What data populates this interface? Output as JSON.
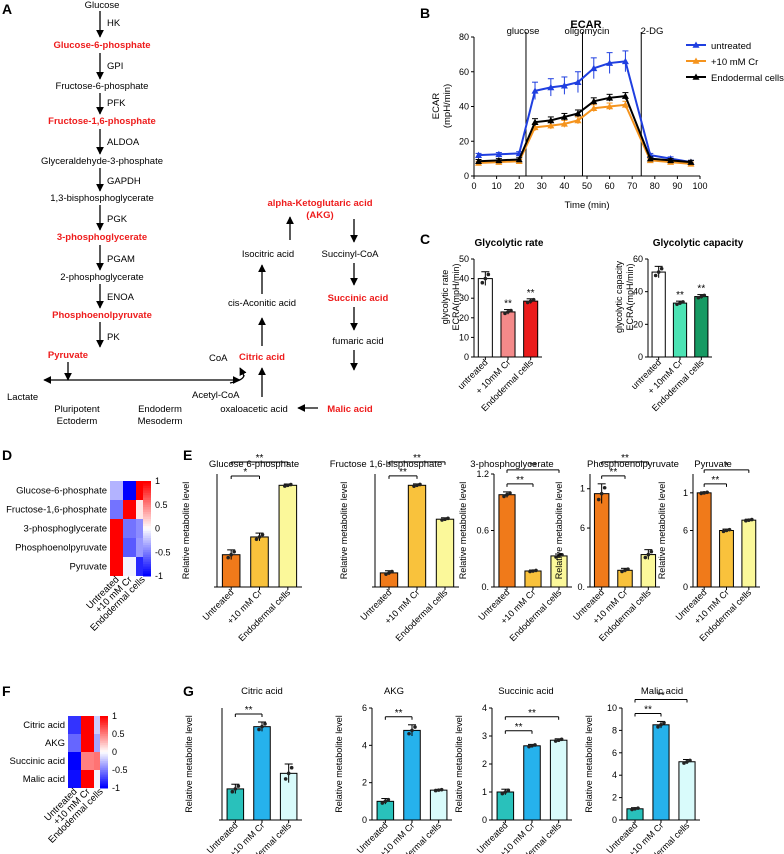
{
  "panel_letters": {
    "a": "A",
    "b": "B",
    "c": "C",
    "d": "D",
    "e": "E",
    "f": "F",
    "g": "G"
  },
  "pathway": {
    "glycolysis": [
      {
        "label": "Glucose",
        "red": false
      },
      {
        "label": "Glucose-6-phosphate",
        "red": true
      },
      {
        "label": "Fructose-6-phosphate",
        "red": false
      },
      {
        "label": "Fructose-1,6-phosphate",
        "red": true
      },
      {
        "label": "Glyceraldehyde-3-phosphate",
        "red": false
      },
      {
        "label": "1,3-bisphosphoglycerate",
        "red": false
      },
      {
        "label": "3-phosphoglycerate",
        "red": true
      },
      {
        "label": "2-phosphoglycerate",
        "red": false
      },
      {
        "label": "Phosphoenolpyruvate",
        "red": true
      },
      {
        "label": "Pyruvate",
        "red": true
      }
    ],
    "enzymes": [
      "HK",
      "GPI",
      "PFK",
      "ALDOA",
      "GAPDH",
      "PGK",
      "PGAM",
      "ENOA",
      "PK"
    ],
    "lactate": "Lactate",
    "pluripotent": "Pluripotent",
    "ectoderm": "Ectoderm",
    "endoderm": "Endoderm",
    "mesoderm": "Mesoderm",
    "acetyl_coa": "Acetyl-CoA",
    "coa": "CoA",
    "tca": {
      "akg_1": "alpha-Ketoglutaric acid",
      "akg_2": "(AKG)",
      "succinyl_coa": "Succinyl-CoA",
      "succinic": "Succinic acid",
      "fumaric": "fumaric acid",
      "malic": "Malic acid",
      "oxaloacetic": "oxaloacetic acid",
      "citric": "Citric acid",
      "cis_aconitic": "cis-Aconitic acid",
      "isocitric": "Isocitric acid"
    }
  },
  "chart_data": [
    {
      "id": "B",
      "type": "line",
      "title": "ECAR",
      "xlabel": "Time (min)",
      "ylabel": [
        "ECAR",
        "(mpH/min)"
      ],
      "xlim": [
        0,
        100
      ],
      "ylim": [
        0,
        80
      ],
      "xticks": [
        "0",
        "10",
        "20",
        "30",
        "40",
        "50",
        "60",
        "70",
        "80",
        "90",
        "100"
      ],
      "yticks": [
        "0",
        "20",
        "40",
        "60",
        "80"
      ],
      "injections": [
        {
          "t": 23,
          "label": "glucose"
        },
        {
          "t": 48,
          "label": "oligomycin"
        },
        {
          "t": 74,
          "label": "2-DG"
        }
      ],
      "x": [
        2,
        11,
        20,
        27,
        34,
        40,
        46,
        53,
        60,
        67,
        78,
        87,
        96
      ],
      "series": [
        {
          "name": "untreated",
          "color": "#1f3fe0",
          "marker": "triangle",
          "values": [
            12,
            12.5,
            13,
            49,
            51,
            52,
            54,
            62,
            65,
            66,
            12,
            10,
            8
          ],
          "errors": [
            1,
            1,
            1,
            5,
            5,
            5,
            6,
            6,
            6,
            6,
            1,
            1,
            1
          ]
        },
        {
          "name": "+10 mM Cr",
          "color": "#f5941e",
          "marker": "triangle",
          "values": [
            7.5,
            8,
            8.5,
            28,
            29,
            30,
            32,
            39,
            40,
            41,
            9,
            8,
            7
          ],
          "errors": [
            1,
            1,
            1,
            2,
            2,
            2,
            2,
            2,
            2,
            2,
            1,
            1,
            1
          ]
        },
        {
          "name": "Endodermal cells",
          "color": "#000000",
          "marker": "triangle",
          "values": [
            8.5,
            9,
            9.5,
            31,
            32,
            34,
            36,
            43,
            45,
            46,
            10,
            9,
            8
          ],
          "errors": [
            1,
            1,
            1,
            2,
            2,
            2,
            2,
            2,
            2,
            2,
            1,
            1,
            1
          ]
        }
      ]
    },
    {
      "id": "C1",
      "type": "bar",
      "title": "Glycolytic rate",
      "ylabel": [
        "glycolytic rate",
        "ECRA(mpH/min)"
      ],
      "ylim": [
        0,
        50
      ],
      "yticks": [
        "0",
        "10",
        "20",
        "30",
        "40",
        "50"
      ],
      "categories": [
        "untreated",
        "+ 10mM Cr",
        "Endodermal cells"
      ],
      "values": [
        40,
        23,
        28.5
      ],
      "errors": [
        3.5,
        1.2,
        1.2
      ],
      "colors": [
        "#ffffff",
        "#f48a8a",
        "#ea1c1c"
      ],
      "sig": [
        "",
        "**",
        "**"
      ]
    },
    {
      "id": "C2",
      "type": "bar",
      "title": "Glycolytic capacity",
      "ylabel": [
        "glycolytic capacity",
        "ECRA(mpH/min)"
      ],
      "ylim": [
        0,
        60
      ],
      "yticks": [
        "0",
        "20",
        "40",
        "60"
      ],
      "categories": [
        "untreated",
        "+ 10mM Cr",
        "Endodermal cells"
      ],
      "values": [
        52,
        33,
        37
      ],
      "errors": [
        3.5,
        1.2,
        1.2
      ],
      "colors": [
        "#ffffff",
        "#4ce3b4",
        "#169a63"
      ],
      "sig": [
        "",
        "**",
        "**"
      ]
    },
    {
      "id": "D",
      "type": "heatmap",
      "rows": [
        "Glucose-6-phosphate",
        "Fructose-1,6-phosphate",
        "3-phosphoglycerate",
        "Phosphoenolpyruvate",
        "Pyruvate"
      ],
      "cols": [
        "Untreated",
        "+10 mM Cr",
        "Endodermal cells"
      ],
      "values": [
        [
          -0.3,
          -1,
          1
        ],
        [
          -0.55,
          1,
          0.1
        ],
        [
          1,
          -0.55,
          -0.45
        ],
        [
          1,
          -0.65,
          -0.4
        ],
        [
          1,
          -0.05,
          -0.85
        ]
      ],
      "scale_ticks": [
        "1",
        "0.5",
        "0",
        "-0.5",
        "-1"
      ]
    },
    {
      "id": "F",
      "type": "heatmap",
      "rows": [
        "Citric acid",
        "AKG",
        "Succinic acid",
        "Malic acid"
      ],
      "cols": [
        "Untreated",
        "+10 mM Cr",
        "Endodermal cells"
      ],
      "values": [
        [
          -0.8,
          1,
          -0.2
        ],
        [
          -0.6,
          1,
          -0.35
        ],
        [
          -1,
          0.5,
          0.55
        ],
        [
          -0.95,
          1,
          -0.05
        ]
      ],
      "scale_ticks": [
        "1",
        "0.5",
        "0",
        "-0.5",
        "-1"
      ]
    },
    {
      "id": "E1",
      "type": "bar",
      "title": "Glucose 6-phosphate",
      "ylabel": "Relative metabolite level",
      "ylim": [
        0,
        3.5
      ],
      "ticks": [
        {
          "v": 0,
          "t": ""
        }
      ],
      "categories": [
        "Untreated",
        "+10 mM Cr",
        "Endodermal cells"
      ],
      "values": [
        1,
        1.55,
        3.15
      ],
      "errors": [
        0.15,
        0.12,
        0.04
      ],
      "colors": [
        "#f07a1a",
        "#f9c23c",
        "#fbf89a"
      ],
      "brackets": [
        {
          "from": 0,
          "to": 1,
          "label": "*"
        },
        {
          "from": 0,
          "to": 2,
          "label": "**"
        }
      ]
    },
    {
      "id": "E2",
      "type": "bar",
      "title": "Fructose 1,6-bisphosphate",
      "ylabel": "Relative metabolite level",
      "ylim": [
        0,
        8
      ],
      "ticks": [
        {
          "v": 0,
          "t": ""
        }
      ],
      "categories": [
        "Untreated",
        "+10 mM Cr",
        "Endodermal cells"
      ],
      "values": [
        1,
        7.2,
        4.8
      ],
      "errors": [
        0.15,
        0.1,
        0.1
      ],
      "colors": [
        "#f07a1a",
        "#f9c23c",
        "#fbf89a"
      ],
      "brackets": [
        {
          "from": 0,
          "to": 1,
          "label": "**"
        },
        {
          "from": 0,
          "to": 2,
          "label": "**"
        }
      ]
    },
    {
      "id": "E3",
      "type": "bar",
      "title": "3-phosphoglycerate",
      "ylabel": "Relative metabolite level",
      "ylim": [
        0,
        1.2
      ],
      "ticks": [
        {
          "v": 0,
          "t": "0."
        },
        {
          "v": 0.6,
          "t": "0.6"
        },
        {
          "v": 1.2,
          "t": "1.2"
        }
      ],
      "categories": [
        "Untreated",
        "+10 mM Cr",
        "Endodermal cells"
      ],
      "values": [
        0.98,
        0.17,
        0.33
      ],
      "errors": [
        0.03,
        0.01,
        0.02
      ],
      "colors": [
        "#f07a1a",
        "#f9c23c",
        "#fbf89a"
      ],
      "brackets": [
        {
          "from": 0,
          "to": 1,
          "label": "**"
        },
        {
          "from": 0,
          "to": 2,
          "label": "**"
        }
      ]
    },
    {
      "id": "E4",
      "type": "bar",
      "title": "Phosphoenolpyruvate",
      "ylabel": "Relative metabolite level",
      "ylim": [
        0,
        1.15
      ],
      "ticks": [
        {
          "v": 0,
          "t": "0."
        },
        {
          "v": 0.6,
          "t": "6"
        },
        {
          "v": 1.0,
          "t": "1"
        }
      ],
      "categories": [
        "Untreated",
        "+10 mM Cr",
        "Endodermal cells"
      ],
      "values": [
        0.95,
        0.17,
        0.33
      ],
      "errors": [
        0.1,
        0.02,
        0.05
      ],
      "colors": [
        "#f07a1a",
        "#f9c23c",
        "#fbf89a"
      ],
      "brackets": [
        {
          "from": 0,
          "to": 1,
          "label": "**"
        },
        {
          "from": 0,
          "to": 2,
          "label": "**"
        }
      ]
    },
    {
      "id": "E5",
      "type": "bar",
      "title": "Pyruvate",
      "ylabel": "Relative metabolite level",
      "ylim": [
        0,
        1.2
      ],
      "ticks": [
        {
          "v": 0,
          "t": "0"
        },
        {
          "v": 0.6,
          "t": "6"
        },
        {
          "v": 1.0,
          "t": "1"
        }
      ],
      "categories": [
        "Untreated",
        "+10 mM Cr",
        "Endodermal cells"
      ],
      "values": [
        1.0,
        0.6,
        0.71
      ],
      "errors": [
        0.01,
        0.015,
        0.01
      ],
      "colors": [
        "#f07a1a",
        "#f9c23c",
        "#fbf89a"
      ],
      "brackets": [
        {
          "from": 0,
          "to": 1,
          "label": "**"
        },
        {
          "from": 0,
          "to": 2,
          "label": "*"
        }
      ]
    },
    {
      "id": "G1",
      "type": "bar",
      "title": "Citric acid",
      "ylabel": "Relative metabolite level",
      "ylim": [
        0,
        3.6
      ],
      "ticks": [
        {
          "v": 0,
          "t": ""
        }
      ],
      "categories": [
        "Untreated",
        "+10 mM Cr",
        "Endodermal cells"
      ],
      "values": [
        1.0,
        3.0,
        1.5
      ],
      "errors": [
        0.15,
        0.15,
        0.3
      ],
      "colors": [
        "#29c1bb",
        "#26b2ec",
        "#d9fbfb"
      ],
      "brackets": [
        {
          "from": 0,
          "to": 1,
          "label": "**"
        }
      ]
    },
    {
      "id": "G2",
      "type": "bar",
      "title": "AKG",
      "ylabel": "Relative metabolite level",
      "ylim": [
        0,
        6
      ],
      "ticks": [
        {
          "v": 0,
          "t": "0"
        },
        {
          "v": 2,
          "t": "2"
        },
        {
          "v": 4,
          "t": "4"
        },
        {
          "v": 6,
          "t": "6"
        }
      ],
      "categories": [
        "Untreated",
        "+10 mM Cr",
        "Endodermal cells"
      ],
      "values": [
        1.0,
        4.8,
        1.6
      ],
      "errors": [
        0.15,
        0.3,
        0.04
      ],
      "colors": [
        "#29c1bb",
        "#26b2ec",
        "#d9fbfb"
      ],
      "brackets": [
        {
          "from": 0,
          "to": 1,
          "label": "**"
        }
      ]
    },
    {
      "id": "G3",
      "type": "bar",
      "title": "Succinic acid",
      "ylabel": "Relative metabolite level",
      "ylim": [
        0,
        4
      ],
      "ticks": [
        {
          "v": 0,
          "t": "0"
        },
        {
          "v": 1,
          "t": "1"
        },
        {
          "v": 2,
          "t": "2"
        },
        {
          "v": 3,
          "t": "3"
        },
        {
          "v": 4,
          "t": "4"
        }
      ],
      "categories": [
        "Untreated",
        "+10 mM Cr",
        "Endodermal cells"
      ],
      "values": [
        1.0,
        2.65,
        2.85
      ],
      "errors": [
        0.1,
        0.05,
        0.05
      ],
      "colors": [
        "#29c1bb",
        "#26b2ec",
        "#d9fbfb"
      ],
      "brackets": [
        {
          "from": 0,
          "to": 1,
          "label": "**"
        },
        {
          "from": 0,
          "to": 2,
          "label": "**"
        }
      ]
    },
    {
      "id": "G4",
      "type": "bar",
      "title": "Malic acid",
      "ylabel": "Relative metabolite level",
      "ylim": [
        0,
        10
      ],
      "ticks": [
        {
          "v": 0,
          "t": "0"
        },
        {
          "v": 2,
          "t": "2"
        },
        {
          "v": 4,
          "t": "4"
        },
        {
          "v": 6,
          "t": "6"
        },
        {
          "v": 8,
          "t": "8"
        },
        {
          "v": 10,
          "t": "10"
        }
      ],
      "categories": [
        "Untreated",
        "+10 mM Cr",
        "Endodermal cells"
      ],
      "values": [
        1.0,
        8.5,
        5.2
      ],
      "errors": [
        0.1,
        0.3,
        0.2
      ],
      "colors": [
        "#29c1bb",
        "#26b2ec",
        "#d9fbfb"
      ],
      "brackets": [
        {
          "from": 0,
          "to": 1,
          "label": "**"
        },
        {
          "from": 0,
          "to": 2,
          "label": "**"
        }
      ]
    }
  ]
}
